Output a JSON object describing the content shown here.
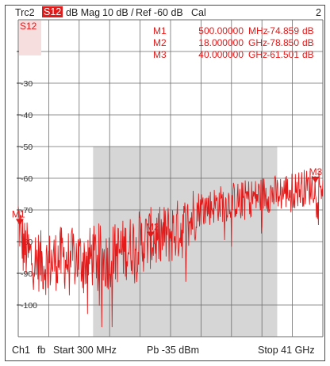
{
  "header": {
    "trace": "Trc2",
    "param": "S12",
    "format": "dB Mag",
    "scale": "10 dB /",
    "ref": "Ref -60 dB",
    "cal": "Cal",
    "trace_number": "2"
  },
  "footer": {
    "channel": "Ch1",
    "flag": "fb",
    "start": "Start  300 MHz",
    "power": "Pb  -35 dBm",
    "stop": "Stop  41 GHz"
  },
  "colors": {
    "trace": "#e31a1a",
    "grid": "#6e6e6e",
    "gate": "#d6d6d6"
  },
  "chart_data": {
    "type": "line",
    "title": "",
    "xlabel": "",
    "ylabel": "",
    "trace_label": "S12",
    "x_unit": "GHz",
    "xlim": [
      0.3,
      41
    ],
    "ylim": [
      -110,
      -10
    ],
    "grid": true,
    "y_ticks": [
      {
        "value": -20,
        "label": "-20"
      },
      {
        "value": -30,
        "label": "-30"
      },
      {
        "value": -40,
        "label": "-40"
      },
      {
        "value": -50,
        "label": "-50"
      },
      {
        "value": -60,
        "label": "-60"
      },
      {
        "value": -70,
        "label": "-70"
      },
      {
        "value": -80,
        "label": "-80"
      },
      {
        "value": -90,
        "label": "-90"
      },
      {
        "value": -100,
        "label": "-100"
      }
    ],
    "gate_region_ghz": [
      10.3,
      34.9
    ],
    "markers": [
      {
        "name": "M1",
        "x": 0.5,
        "y": -74.859,
        "freq": "500.00000",
        "unit": "MHz",
        "value": "-74.859",
        "value_unit": "dB"
      },
      {
        "name": "M2",
        "x": 18,
        "y": -78.85,
        "freq": "18.000000",
        "unit": "GHz",
        "value": "-78.850",
        "value_unit": "dB"
      },
      {
        "name": "M3",
        "x": 40,
        "y": -61.501,
        "freq": "40.000000",
        "unit": "GHz",
        "value": "-61.501",
        "value_unit": "dB"
      }
    ],
    "series": [
      {
        "x": [
          0.3,
          0.5,
          1,
          2,
          3,
          4,
          5,
          6,
          7,
          8,
          9,
          10,
          11,
          12,
          13,
          14,
          15,
          16,
          17,
          18,
          19,
          20,
          21,
          22,
          23,
          24,
          25,
          26,
          27,
          28,
          29,
          30,
          31,
          32,
          33,
          34,
          35,
          36,
          37,
          38,
          39,
          40,
          41
        ],
        "y": [
          -72,
          -75,
          -82,
          -85,
          -86,
          -87,
          -86,
          -85,
          -86,
          -85,
          -86,
          -85,
          -84,
          -86,
          -84,
          -83,
          -82,
          -80,
          -80,
          -79,
          -79,
          -78,
          -77,
          -76,
          -75,
          -70,
          -69,
          -69,
          -68,
          -68,
          -67,
          -67,
          -66,
          -66,
          -65,
          -65,
          -65,
          -64,
          -64,
          -63,
          -63,
          -62,
          -62
        ],
        "noise": [
          {
            "x0": 0.3,
            "x1": 24,
            "amp": 10
          },
          {
            "x0": 24,
            "x1": 41,
            "amp": 6
          }
        ]
      }
    ]
  }
}
